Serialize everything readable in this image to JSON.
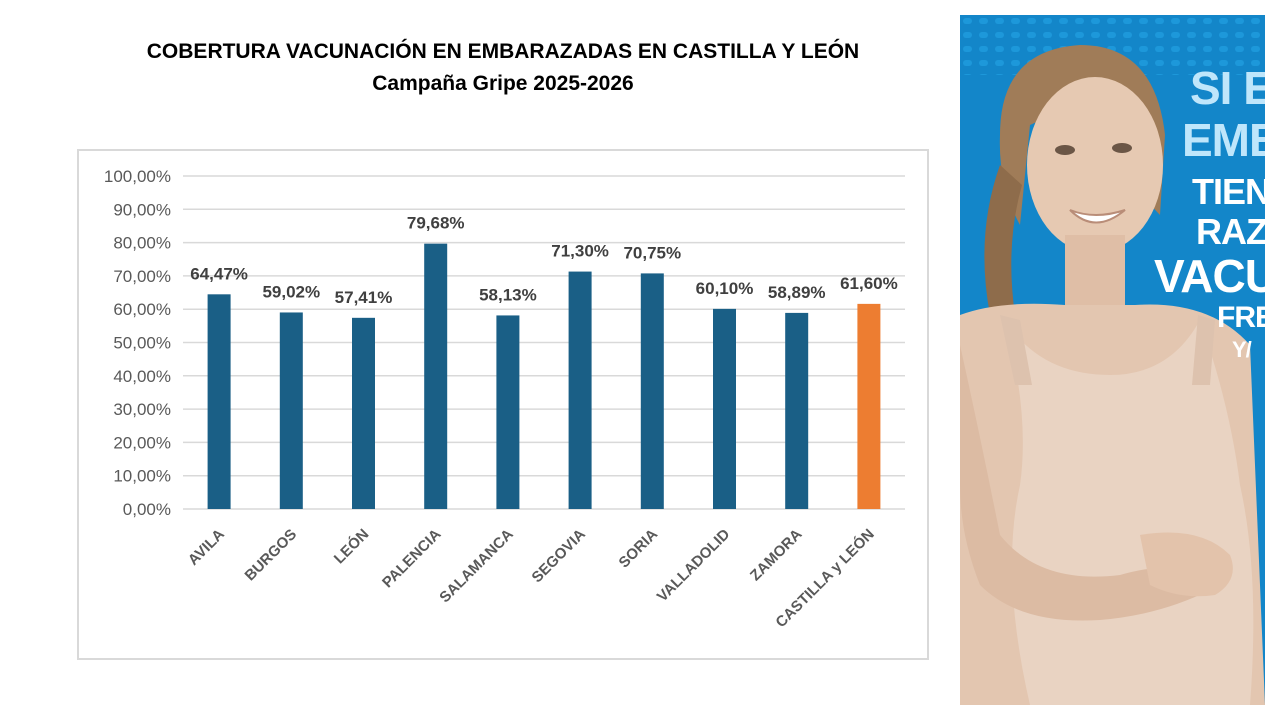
{
  "header": {
    "title": "COBERTURA VACUNACIÓN EN EMBARAZADAS EN CASTILLA Y LEÓN",
    "subtitle": "Campaña Gripe 2025-2026"
  },
  "chart_data": {
    "type": "bar",
    "title": "COBERTURA VACUNACIÓN EN EMBARAZADAS EN CASTILLA Y LEÓN",
    "subtitle": "Campaña Gripe 2025-2026",
    "xlabel": "",
    "ylabel": "",
    "ylim": [
      0,
      100
    ],
    "y_ticks": [
      "0,00%",
      "10,00%",
      "20,00%",
      "30,00%",
      "40,00%",
      "50,00%",
      "60,00%",
      "70,00%",
      "80,00%",
      "90,00%",
      "100,00%"
    ],
    "grid": true,
    "legend": "none",
    "categories": [
      "AVILA",
      "BURGOS",
      "LEÓN",
      "PALENCIA",
      "SALAMANCA",
      "SEGOVIA",
      "SORIA",
      "VALLADOLID",
      "ZAMORA",
      "CASTILLA y LEÓN"
    ],
    "values": [
      64.47,
      59.02,
      57.41,
      79.68,
      58.13,
      71.3,
      70.75,
      60.1,
      58.89,
      61.6
    ],
    "data_labels": [
      "64,47%",
      "59,02%",
      "57,41%",
      "79,68%",
      "58,13%",
      "71,30%",
      "70,75%",
      "60,10%",
      "58,89%",
      "61,60%"
    ],
    "colors": {
      "province": "#1a5f86",
      "region_total": "#ed7d31",
      "grid": "#d9d9d9",
      "text": "#595959"
    },
    "highlight_category": "CASTILLA y LEÓN"
  },
  "poster": {
    "line1": "SI E",
    "line2": "EMB",
    "line3": "TIENE",
    "line4": "RAZÓ",
    "line5": "VACUN",
    "line6": "FRE",
    "line7": "Y/",
    "colors": {
      "background": "#1386c9",
      "text": "#ffffff",
      "accent_text": "#bfe6fb"
    }
  }
}
